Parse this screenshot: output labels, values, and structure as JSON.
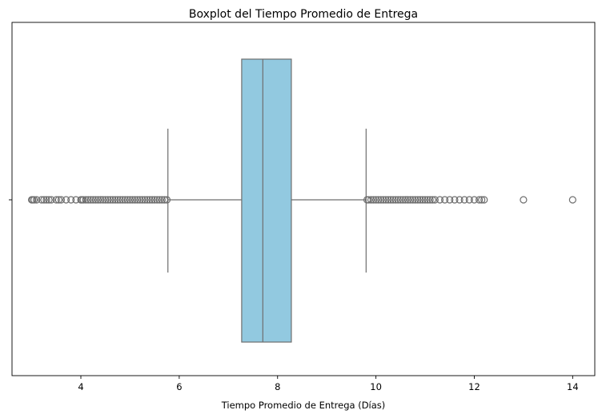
{
  "chart_data": {
    "type": "boxplot",
    "title": "Boxplot del Tiempo Promedio de Entrega",
    "xlabel": "Tiempo Promedio de Entrega (Días)",
    "ylabel": "",
    "xlim": [
      2.6,
      14.45
    ],
    "xticks": [
      4,
      6,
      8,
      10,
      12,
      14
    ],
    "box": {
      "q1": 7.27,
      "median": 7.7,
      "q3": 8.28,
      "whisker_low": 5.77,
      "whisker_high": 9.8,
      "color": "#92c9e0",
      "edge_color": "#6e6e6e"
    },
    "outliers": [
      3.0,
      3.02,
      3.05,
      3.1,
      3.2,
      3.25,
      3.3,
      3.35,
      3.4,
      3.5,
      3.55,
      3.6,
      3.7,
      3.8,
      3.9,
      4.0,
      4.02,
      4.05,
      4.1,
      4.15,
      4.2,
      4.25,
      4.3,
      4.35,
      4.4,
      4.45,
      4.5,
      4.55,
      4.6,
      4.65,
      4.7,
      4.75,
      4.8,
      4.85,
      4.9,
      4.95,
      5.0,
      5.05,
      5.1,
      5.15,
      5.2,
      5.25,
      5.3,
      5.35,
      5.4,
      5.45,
      5.5,
      5.55,
      5.6,
      5.65,
      5.7,
      5.75,
      9.82,
      9.85,
      9.9,
      9.95,
      10.0,
      10.05,
      10.1,
      10.15,
      10.2,
      10.25,
      10.3,
      10.35,
      10.4,
      10.45,
      10.5,
      10.55,
      10.6,
      10.65,
      10.7,
      10.75,
      10.8,
      10.85,
      10.9,
      10.95,
      11.0,
      11.05,
      11.1,
      11.15,
      11.2,
      11.3,
      11.4,
      11.5,
      11.6,
      11.7,
      11.8,
      11.9,
      12.0,
      12.1,
      12.15,
      12.2,
      13.0,
      14.0
    ]
  }
}
